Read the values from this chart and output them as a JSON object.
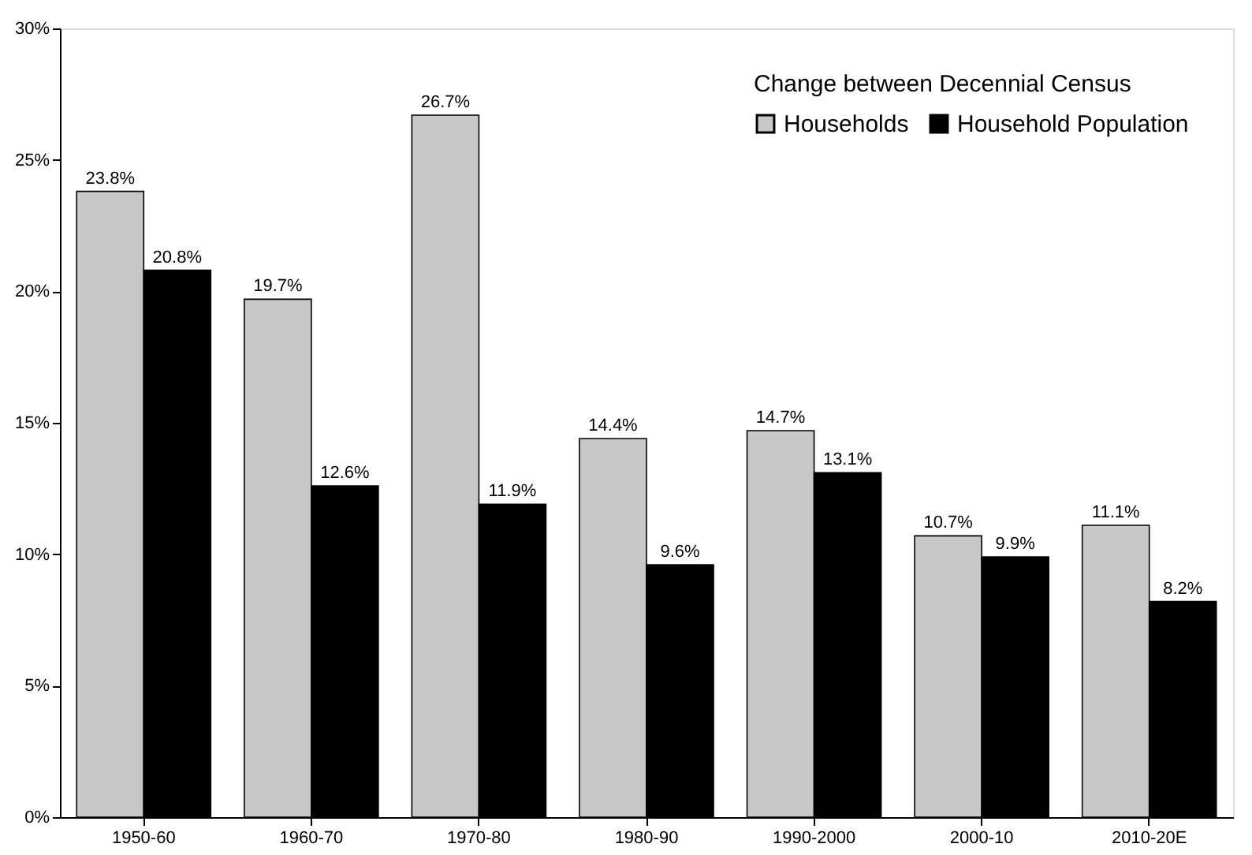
{
  "chart_data": {
    "type": "bar",
    "legend_title": "Change between Decennial Census",
    "categories": [
      "1950-60",
      "1960-70",
      "1970-80",
      "1980-90",
      "1990-2000",
      "2000-10",
      "2010-20E"
    ],
    "series": [
      {
        "name": "Households",
        "color": "#c8c8c8",
        "values": [
          23.8,
          19.7,
          26.7,
          14.4,
          14.7,
          10.7,
          11.1
        ],
        "value_labels": [
          "23.8%",
          "19.7%",
          "26.7%",
          "14.4%",
          "14.7%",
          "10.7%",
          "11.1%"
        ]
      },
      {
        "name": "Household Population",
        "color": "#000000",
        "values": [
          20.8,
          12.6,
          11.9,
          9.6,
          13.1,
          9.9,
          8.2
        ],
        "value_labels": [
          "20.8%",
          "12.6%",
          "11.9%",
          "9.6%",
          "13.1%",
          "9.9%",
          "8.2%"
        ]
      }
    ],
    "ylim": [
      0,
      30
    ],
    "yticks": [
      {
        "value": 0,
        "label": "0%"
      },
      {
        "value": 5,
        "label": "5%"
      },
      {
        "value": 10,
        "label": "10%"
      },
      {
        "value": 15,
        "label": "15%"
      },
      {
        "value": 20,
        "label": "20%"
      },
      {
        "value": 25,
        "label": "25%"
      },
      {
        "value": 30,
        "label": "30%"
      }
    ],
    "grid": false,
    "legend": "top right"
  }
}
